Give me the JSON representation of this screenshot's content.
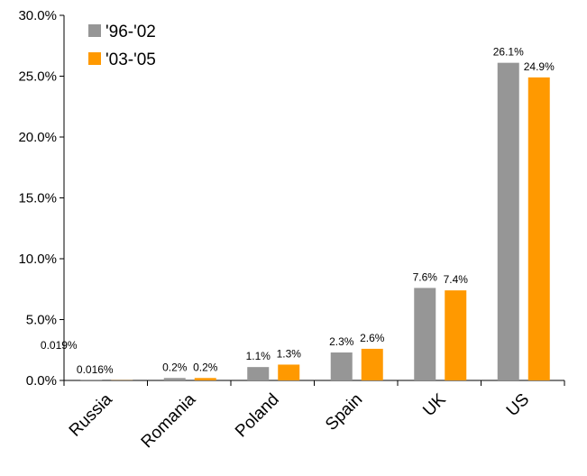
{
  "chart_data": {
    "type": "bar",
    "categories": [
      "Russia",
      "Romania",
      "Poland",
      "Spain",
      "UK",
      "US"
    ],
    "series": [
      {
        "name": "'96-'02",
        "color": "#969696",
        "values": [
          0.019,
          0.2,
          1.1,
          2.3,
          7.6,
          26.1
        ],
        "labels": [
          "0.019%",
          "0.2%",
          "1.1%",
          "2.3%",
          "7.6%",
          "26.1%"
        ]
      },
      {
        "name": "'03-'05",
        "color": "#FF9900",
        "values": [
          0.016,
          0.2,
          1.3,
          2.6,
          7.4,
          24.9
        ],
        "labels": [
          "0.016%",
          "0.2%",
          "1.3%",
          "2.6%",
          "7.4%",
          "24.9%"
        ]
      }
    ],
    "yticks": [
      "0.0%",
      "5.0%",
      "10.0%",
      "15.0%",
      "20.0%",
      "25.0%",
      "30.0%"
    ],
    "ylim": [
      0,
      30
    ],
    "grid": false,
    "legend": "top-left"
  }
}
